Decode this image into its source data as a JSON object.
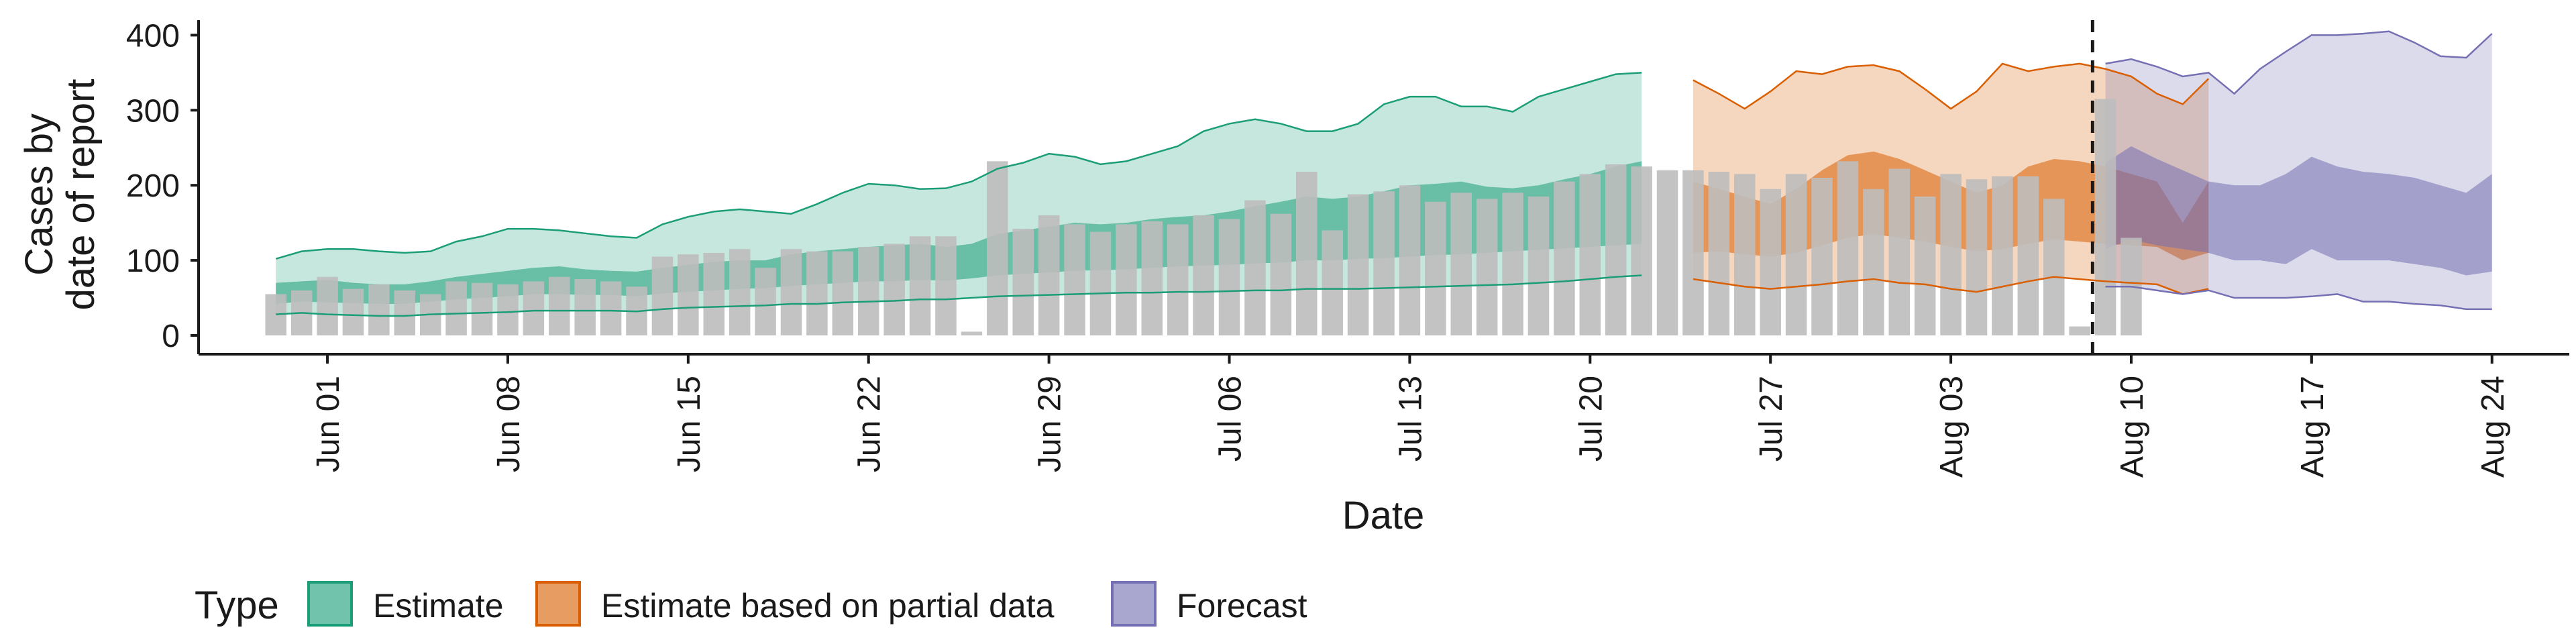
{
  "chart_data": {
    "type": "area",
    "xlabel": "Date",
    "ylabel_lines": [
      "Cases by",
      "date of report"
    ],
    "ylim": [
      0,
      420
    ],
    "yticks": [
      0,
      100,
      200,
      300,
      400
    ],
    "xlim": [
      "2021-05-27",
      "2021-08-27"
    ],
    "xticks": [
      {
        "date": "2021-06-01",
        "label": "Jun 01"
      },
      {
        "date": "2021-06-08",
        "label": "Jun 08"
      },
      {
        "date": "2021-06-15",
        "label": "Jun 15"
      },
      {
        "date": "2021-06-22",
        "label": "Jun 22"
      },
      {
        "date": "2021-06-29",
        "label": "Jun 29"
      },
      {
        "date": "2021-07-06",
        "label": "Jul 06"
      },
      {
        "date": "2021-07-13",
        "label": "Jul 13"
      },
      {
        "date": "2021-07-20",
        "label": "Jul 20"
      },
      {
        "date": "2021-07-27",
        "label": "Jul 27"
      },
      {
        "date": "2021-08-03",
        "label": "Aug 03"
      },
      {
        "date": "2021-08-10",
        "label": "Aug 10"
      },
      {
        "date": "2021-08-17",
        "label": "Aug 17"
      },
      {
        "date": "2021-08-24",
        "label": "Aug 24"
      }
    ],
    "forecast_date": "2021-08-08",
    "legend": {
      "title": "Type",
      "position": "bottom",
      "entries": [
        {
          "label": "Estimate",
          "color": "#1b9e77"
        },
        {
          "label": "Estimate based on partial data",
          "color": "#d95f02"
        },
        {
          "label": "Forecast",
          "color": "#7570b3"
        }
      ]
    },
    "bars": {
      "start": "2021-05-30",
      "color": "#bdbdbd",
      "values": [
        55,
        60,
        78,
        62,
        68,
        60,
        55,
        72,
        70,
        68,
        72,
        78,
        75,
        72,
        65,
        105,
        108,
        110,
        115,
        90,
        115,
        112,
        112,
        118,
        122,
        132,
        132,
        5,
        232,
        142,
        160,
        148,
        138,
        148,
        152,
        148,
        160,
        155,
        180,
        162,
        218,
        140,
        188,
        192,
        200,
        178,
        190,
        182,
        190,
        185,
        205,
        215,
        228,
        225,
        220,
        220,
        218,
        215,
        195,
        215,
        210,
        232,
        195,
        222,
        185,
        215,
        208,
        212,
        212,
        182,
        12,
        315,
        130
      ]
    },
    "series": [
      {
        "name": "Estimate",
        "color": "#1b9e77",
        "start": "2021-05-30",
        "lower90": [
          28,
          30,
          28,
          27,
          26,
          26,
          28,
          29,
          30,
          31,
          33,
          33,
          33,
          33,
          32,
          35,
          37,
          38,
          39,
          40,
          42,
          42,
          44,
          45,
          46,
          48,
          48,
          50,
          52,
          53,
          54,
          55,
          56,
          57,
          57,
          58,
          58,
          59,
          60,
          60,
          62,
          62,
          62,
          63,
          64,
          65,
          66,
          67,
          68,
          70,
          72,
          75,
          78,
          80
        ],
        "lower50": [
          42,
          45,
          44,
          43,
          42,
          42,
          45,
          48,
          50,
          52,
          55,
          55,
          54,
          54,
          52,
          56,
          58,
          60,
          62,
          63,
          66,
          68,
          70,
          72,
          72,
          74,
          73,
          76,
          80,
          82,
          84,
          86,
          87,
          88,
          90,
          92,
          93,
          94,
          96,
          97,
          100,
          100,
          102,
          103,
          105,
          107,
          108,
          110,
          112,
          114,
          116,
          118,
          120,
          122
        ],
        "upper50": [
          70,
          72,
          74,
          70,
          68,
          68,
          72,
          78,
          82,
          86,
          90,
          92,
          88,
          86,
          85,
          90,
          94,
          98,
          100,
          100,
          108,
          112,
          115,
          118,
          120,
          122,
          118,
          122,
          135,
          140,
          145,
          150,
          148,
          150,
          155,
          158,
          160,
          165,
          172,
          178,
          185,
          182,
          185,
          192,
          200,
          202,
          205,
          198,
          196,
          200,
          208,
          215,
          225,
          232
        ],
        "upper90": [
          102,
          112,
          115,
          115,
          112,
          110,
          112,
          125,
          132,
          142,
          142,
          140,
          136,
          132,
          130,
          148,
          158,
          165,
          168,
          165,
          162,
          175,
          190,
          202,
          200,
          195,
          196,
          205,
          222,
          230,
          242,
          238,
          228,
          232,
          242,
          252,
          272,
          282,
          288,
          282,
          272,
          272,
          282,
          308,
          318,
          318,
          305,
          305,
          298,
          318,
          328,
          338,
          348,
          350
        ]
      },
      {
        "name": "Estimate based on partial data",
        "color": "#d95f02",
        "start": "2021-07-24",
        "lower90": [
          75,
          70,
          65,
          62,
          65,
          68,
          72,
          75,
          70,
          68,
          62,
          58,
          65,
          72,
          78,
          75,
          72,
          70,
          68,
          55,
          62
        ],
        "lower50": [
          110,
          112,
          108,
          105,
          110,
          120,
          130,
          135,
          130,
          125,
          118,
          112,
          115,
          122,
          128,
          125,
          122,
          120,
          118,
          100,
          110
        ],
        "upper50": [
          205,
          195,
          185,
          175,
          195,
          220,
          240,
          245,
          235,
          220,
          205,
          190,
          200,
          225,
          235,
          232,
          225,
          215,
          205,
          150,
          205
        ],
        "upper90": [
          340,
          322,
          302,
          325,
          352,
          348,
          358,
          360,
          352,
          328,
          302,
          325,
          362,
          352,
          358,
          362,
          355,
          345,
          322,
          308,
          342
        ]
      },
      {
        "name": "Forecast",
        "color": "#7570b3",
        "start": "2021-08-09",
        "lower90": [
          65,
          65,
          60,
          55,
          60,
          50,
          50,
          50,
          52,
          55,
          45,
          45,
          42,
          40,
          35,
          35
        ],
        "lower50": [
          115,
          128,
          120,
          115,
          110,
          100,
          100,
          95,
          115,
          100,
          100,
          100,
          95,
          90,
          80,
          85
        ],
        "upper50": [
          230,
          252,
          235,
          220,
          205,
          200,
          200,
          215,
          238,
          225,
          218,
          215,
          210,
          200,
          190,
          215
        ],
        "upper90": [
          362,
          368,
          358,
          345,
          350,
          322,
          355,
          378,
          400,
          400,
          402,
          405,
          390,
          372,
          370,
          402
        ]
      }
    ]
  }
}
